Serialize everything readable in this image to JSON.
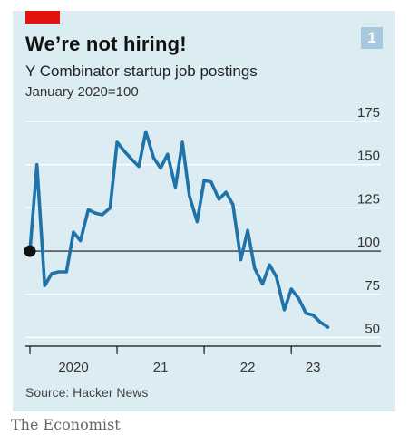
{
  "header": {
    "title": "We’re not hiring!",
    "subtitle": "Y Combinator startup job postings",
    "unit": "January 2020=100",
    "chart_number": "1"
  },
  "footer": {
    "source": "Source: Hacker News",
    "brand": "The Economist"
  },
  "colors": {
    "line": "#1f73a8",
    "accent_red": "#e3120b",
    "panel": "#dbecf2",
    "marker": "#111111"
  },
  "chart_data": {
    "type": "line",
    "title": "We’re not hiring!",
    "subtitle": "Y Combinator startup job postings",
    "ylabel": "January 2020=100",
    "ylim": [
      45,
      175
    ],
    "yticks": [
      50,
      75,
      100,
      125,
      150,
      175
    ],
    "ytick_labels": [
      "50",
      "75",
      "100",
      "125",
      "150",
      "175"
    ],
    "xlim": [
      2020.0,
      2023.55
    ],
    "xtick_positions": [
      2020.0,
      2021.0,
      2022.0,
      2023.0
    ],
    "xtick_labels": [
      {
        "x": 2020.5,
        "label": "2020"
      },
      {
        "x": 2021.5,
        "label": "21"
      },
      {
        "x": 2022.5,
        "label": "22"
      },
      {
        "x": 2023.25,
        "label": "23"
      }
    ],
    "baseline_value": 100,
    "grid": "horizontal",
    "series": [
      {
        "x": [
          2020.0,
          2020.08,
          2020.17,
          2020.25,
          2020.33,
          2020.42,
          2020.5,
          2020.58,
          2020.67,
          2020.75,
          2020.83,
          2020.92,
          2021.0,
          2021.08,
          2021.17,
          2021.25,
          2021.33,
          2021.42,
          2021.5,
          2021.58,
          2021.67,
          2021.75,
          2021.83,
          2021.92,
          2022.0,
          2022.08,
          2022.17,
          2022.25,
          2022.33,
          2022.42,
          2022.5,
          2022.58,
          2022.67,
          2022.75,
          2022.83,
          2022.92,
          2023.0,
          2023.08,
          2023.17,
          2023.25,
          2023.33,
          2023.42
        ],
        "values": [
          100,
          150,
          80,
          87,
          88,
          88,
          111,
          106,
          124,
          122,
          121,
          125,
          163,
          158,
          153,
          149,
          169,
          154,
          148,
          156,
          137,
          163,
          132,
          117,
          141,
          140,
          130,
          134,
          127,
          95,
          112,
          90,
          81,
          92,
          85,
          66,
          78,
          73,
          64,
          63,
          59,
          56
        ]
      }
    ],
    "start_marker": {
      "x": 2020.0,
      "value": 100
    }
  }
}
